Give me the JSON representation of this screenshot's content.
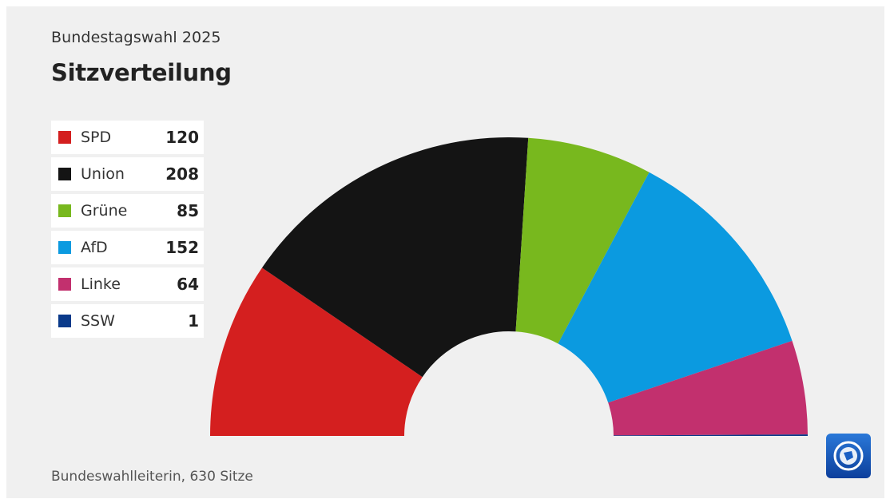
{
  "header": {
    "kicker": "Bundestagswahl 2025",
    "title": "Sitzverteilung"
  },
  "footer": {
    "source": "Bundeswahlleiterin, 630 Sitze"
  },
  "logo": {
    "icon": "tagesschau-logo-icon"
  },
  "chart_data": {
    "type": "pie",
    "subtype": "semicircle-parliament",
    "title": "Sitzverteilung",
    "total": 630,
    "series": [
      {
        "name": "SPD",
        "value": 120,
        "color": "#d41f1f"
      },
      {
        "name": "Union",
        "value": 208,
        "color": "#141414"
      },
      {
        "name": "Grüne",
        "value": 85,
        "color": "#78b81e"
      },
      {
        "name": "AfD",
        "value": 152,
        "color": "#0b9ae0"
      },
      {
        "name": "Linke",
        "value": 64,
        "color": "#c2306e"
      },
      {
        "name": "SSW",
        "value": 1,
        "color": "#0a3a8a"
      }
    ]
  }
}
